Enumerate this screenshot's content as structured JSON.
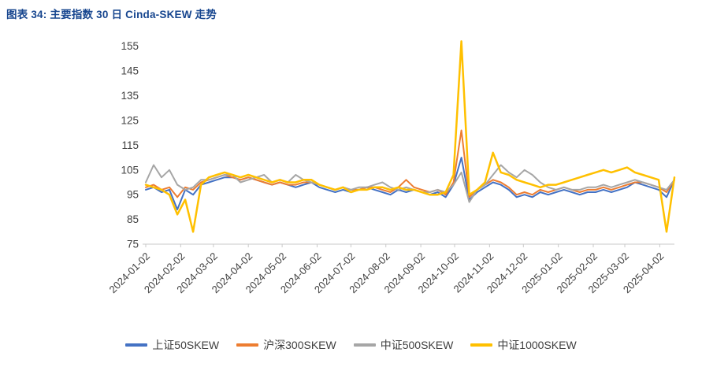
{
  "figure": {
    "caption": "图表 34: 主要指数 30 日 Cinda-SKEW 走势"
  },
  "colors": {
    "caption_blue": "#17468F",
    "axis_text": "#404040",
    "axis_line": "#C9C9C9"
  },
  "chart_data": {
    "type": "line",
    "title": "图表 34: 主要指数 30 日 Cinda-SKEW 走势",
    "xlabel": "",
    "ylabel": "",
    "ylim": [
      75,
      160
    ],
    "yticks": [
      75,
      85,
      95,
      105,
      115,
      125,
      135,
      145,
      155
    ],
    "xticks": [
      "2024-01-02",
      "2024-02-02",
      "2024-03-02",
      "2024-04-02",
      "2024-05-02",
      "2024-06-02",
      "2024-07-02",
      "2024-08-02",
      "2024-09-02",
      "2024-10-02",
      "2024-11-02",
      "2024-12-02",
      "2025-01-02",
      "2025-02-02",
      "2025-03-02",
      "2025-04-02"
    ],
    "grid": false,
    "legend_position": "bottom",
    "x": [
      "2024-01-02",
      "2024-01-09",
      "2024-01-16",
      "2024-01-23",
      "2024-01-30",
      "2024-02-06",
      "2024-02-13",
      "2024-02-20",
      "2024-02-27",
      "2024-03-05",
      "2024-03-12",
      "2024-03-19",
      "2024-03-26",
      "2024-04-02",
      "2024-04-09",
      "2024-04-16",
      "2024-04-23",
      "2024-04-30",
      "2024-05-07",
      "2024-05-14",
      "2024-05-21",
      "2024-05-28",
      "2024-06-04",
      "2024-06-11",
      "2024-06-18",
      "2024-06-25",
      "2024-07-02",
      "2024-07-09",
      "2024-07-16",
      "2024-07-23",
      "2024-07-30",
      "2024-08-06",
      "2024-08-13",
      "2024-08-20",
      "2024-08-27",
      "2024-09-03",
      "2024-09-10",
      "2024-09-17",
      "2024-09-24",
      "2024-10-01",
      "2024-10-08",
      "2024-10-15",
      "2024-10-22",
      "2024-10-29",
      "2024-11-05",
      "2024-11-12",
      "2024-11-19",
      "2024-11-26",
      "2024-12-03",
      "2024-12-10",
      "2024-12-17",
      "2024-12-24",
      "2024-12-31",
      "2025-01-07",
      "2025-01-14",
      "2025-01-21",
      "2025-01-28",
      "2025-02-04",
      "2025-02-11",
      "2025-02-18",
      "2025-02-25",
      "2025-03-04",
      "2025-03-11",
      "2025-03-18",
      "2025-03-25",
      "2025-04-01",
      "2025-04-08",
      "2025-04-15"
    ],
    "series": [
      {
        "name": "上证50SKEW",
        "color": "#4472C4",
        "values": [
          97,
          98,
          96,
          97,
          89,
          97,
          95,
          99,
          100,
          101,
          102,
          102,
          101,
          102,
          101,
          100,
          99,
          100,
          99,
          98,
          99,
          100,
          98,
          97,
          96,
          97,
          96,
          97,
          98,
          97,
          96,
          95,
          97,
          96,
          97,
          96,
          95,
          96,
          94,
          99,
          110,
          93,
          96,
          98,
          100,
          99,
          97,
          94,
          95,
          94,
          96,
          95,
          96,
          97,
          96,
          95,
          96,
          96,
          97,
          96,
          97,
          98,
          100,
          99,
          98,
          97,
          94,
          101
        ]
      },
      {
        "name": "沪深300SKEW",
        "color": "#ED7D31",
        "values": [
          98,
          99,
          97,
          98,
          94,
          98,
          97,
          100,
          101,
          102,
          103,
          102,
          101,
          102,
          101,
          100,
          99,
          100,
          99,
          99,
          100,
          100,
          99,
          98,
          97,
          98,
          97,
          97,
          98,
          98,
          97,
          96,
          98,
          101,
          98,
          97,
          96,
          97,
          95,
          100,
          121,
          94,
          97,
          99,
          101,
          100,
          98,
          95,
          96,
          95,
          97,
          96,
          97,
          98,
          97,
          96,
          97,
          97,
          98,
          97,
          98,
          99,
          100,
          100,
          99,
          98,
          96,
          101
        ]
      },
      {
        "name": "中证500SKEW",
        "color": "#A6A6A6",
        "values": [
          100,
          107,
          102,
          105,
          99,
          97,
          98,
          101,
          101,
          102,
          103,
          103,
          100,
          101,
          102,
          103,
          100,
          101,
          100,
          103,
          101,
          100,
          99,
          98,
          97,
          98,
          97,
          98,
          98,
          99,
          100,
          98,
          97,
          98,
          97,
          96,
          96,
          97,
          96,
          99,
          104,
          92,
          97,
          99,
          103,
          107,
          104,
          102,
          105,
          103,
          100,
          98,
          97,
          98,
          97,
          97,
          98,
          98,
          99,
          98,
          99,
          100,
          101,
          100,
          99,
          98,
          97,
          101
        ]
      },
      {
        "name": "中证1000SKEW",
        "color": "#FFC000",
        "values": [
          99,
          98,
          97,
          95,
          87,
          93,
          80,
          99,
          102,
          103,
          104,
          103,
          102,
          103,
          102,
          101,
          100,
          101,
          100,
          100,
          101,
          101,
          99,
          98,
          97,
          98,
          96,
          97,
          97,
          98,
          98,
          97,
          98,
          97,
          97,
          96,
          95,
          95,
          96,
          103,
          157,
          95,
          97,
          100,
          112,
          104,
          103,
          101,
          100,
          99,
          98,
          99,
          99,
          100,
          101,
          102,
          103,
          104,
          105,
          104,
          105,
          106,
          104,
          103,
          102,
          101,
          80,
          102
        ]
      }
    ]
  }
}
